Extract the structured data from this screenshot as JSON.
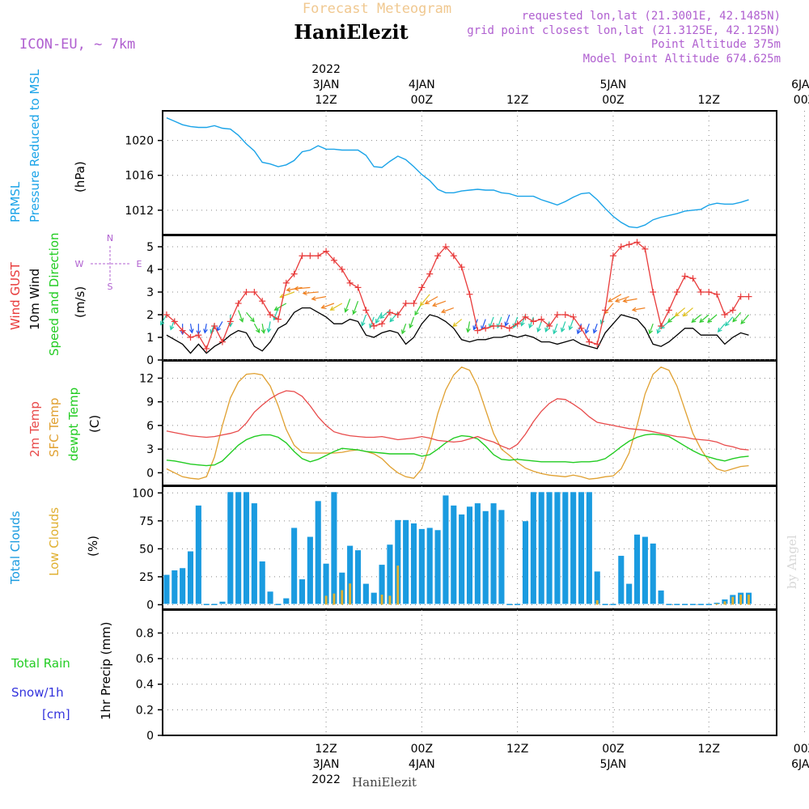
{
  "header": {
    "subtitle": "Forecast Meteogram",
    "station": "HaniElezit",
    "model": "ICON-EU, ~ 7km",
    "requested": "requested lon,lat (21.3001E, 42.1485N)",
    "grid_point": "grid point closest lon,lat (21.3125E, 42.125N)",
    "point_altitude": "Point Altitude 375m",
    "model_altitude": "Model Point Altitude 674.625m",
    "credit": "by Angel",
    "footer_station": "HaniElezit"
  },
  "time_axis": {
    "top_labels": [
      {
        "step": 21,
        "lines": [
          "2022",
          "3JAN",
          "12Z"
        ]
      },
      {
        "step": 33,
        "lines": [
          "4JAN",
          "00Z"
        ]
      },
      {
        "step": 45,
        "lines": [
          "12Z"
        ]
      },
      {
        "step": 57,
        "lines": [
          "5JAN",
          "00Z"
        ]
      },
      {
        "step": 69,
        "lines": [
          "12Z"
        ]
      },
      {
        "step": 81,
        "lines": [
          "6JAN",
          "00Z"
        ]
      }
    ],
    "bottom_labels": [
      {
        "step": 21,
        "lines": [
          "12Z",
          "3JAN",
          "2022"
        ]
      },
      {
        "step": 33,
        "lines": [
          "00Z",
          "4JAN"
        ]
      },
      {
        "step": 45,
        "lines": [
          "12Z"
        ]
      },
      {
        "step": 57,
        "lines": [
          "00Z",
          "5JAN"
        ]
      },
      {
        "step": 69,
        "lines": [
          "12Z"
        ]
      },
      {
        "step": 81,
        "lines": [
          "00Z",
          "6JAN"
        ]
      }
    ],
    "start_step": 1,
    "end_step": 77,
    "step_unit": "hour"
  },
  "colors": {
    "pressure": "#1aa3e8",
    "gust": "#e83a3a",
    "wind": "#000000",
    "temp2m": "#e84a4a",
    "sfctemp": "#e0a030",
    "dewpt": "#22cc22",
    "total_clouds": "#1a9be0",
    "low_clouds": "#e0b030",
    "rain": "#22cc22",
    "snow": "#3333dd",
    "header_purple": "#b060d0",
    "header_orange": "#f0c890"
  },
  "chart_data": [
    {
      "type": "line",
      "panel": "pressure",
      "title_lines": [
        "PRMSL",
        "Pressure Reduced to MSL"
      ],
      "ylabel": "(hPa)",
      "ylim": [
        1009.2,
        1023.4
      ],
      "yticks": [
        1012,
        1016,
        1020
      ],
      "x_start": 1,
      "values": [
        1022.6,
        1022.2,
        1021.8,
        1021.6,
        1021.5,
        1021.5,
        1021.7,
        1021.4,
        1021.3,
        1020.6,
        1019.6,
        1018.8,
        1017.5,
        1017.3,
        1017.0,
        1017.2,
        1017.7,
        1018.7,
        1018.9,
        1019.4,
        1019.0,
        1019.0,
        1018.9,
        1018.9,
        1018.9,
        1018.3,
        1017.0,
        1016.9,
        1017.6,
        1018.2,
        1017.8,
        1017.0,
        1016.1,
        1015.4,
        1014.4,
        1014.0,
        1014.0,
        1014.2,
        1014.3,
        1014.4,
        1014.3,
        1014.3,
        1014.0,
        1013.9,
        1013.6,
        1013.6,
        1013.6,
        1013.2,
        1012.9,
        1012.6,
        1013.0,
        1013.5,
        1013.9,
        1014.0,
        1013.2,
        1012.2,
        1011.3,
        1010.6,
        1010.1,
        1010.0,
        1010.3,
        1010.9,
        1011.2,
        1011.4,
        1011.6,
        1011.9,
        1012.0,
        1012.1,
        1012.6,
        1012.8,
        1012.7,
        1012.7,
        1012.9,
        1013.2
      ]
    },
    {
      "type": "line",
      "panel": "wind",
      "title_lines": [
        "Wind GUST",
        "10m Wind",
        "Speed and Direction"
      ],
      "ylabel": "(m/s)",
      "ylim": [
        0,
        5.5
      ],
      "yticks": [
        0,
        1,
        2,
        3,
        4,
        5
      ],
      "compass": {
        "n": "N",
        "s": "S",
        "w": "W",
        "e": "E"
      },
      "x_start": 1,
      "series": [
        {
          "name": "Wind GUST",
          "values": [
            2.0,
            1.7,
            1.3,
            1.0,
            1.1,
            0.5,
            1.5,
            0.8,
            1.7,
            2.5,
            3.0,
            3.0,
            2.6,
            2.0,
            1.8,
            3.4,
            3.8,
            4.6,
            4.6,
            4.6,
            4.8,
            4.4,
            4.0,
            3.4,
            3.2,
            2.2,
            1.5,
            1.6,
            2.1,
            2.0,
            2.5,
            2.5,
            3.2,
            3.8,
            4.6,
            5.0,
            4.6,
            4.1,
            2.9,
            1.3,
            1.4,
            1.5,
            1.5,
            1.4,
            1.6,
            1.9,
            1.7,
            1.8,
            1.5,
            2.0,
            2.0,
            1.9,
            1.4,
            0.8,
            0.7,
            2.2,
            4.6,
            5.0,
            5.1,
            5.2,
            4.9,
            3.0,
            1.5,
            2.2,
            3.0,
            3.7,
            3.6,
            3.0,
            3.0,
            2.9,
            2.0,
            2.2,
            2.8,
            2.8
          ]
        },
        {
          "name": "10m Wind",
          "values": [
            1.1,
            0.9,
            0.7,
            0.3,
            0.7,
            0.3,
            0.6,
            0.8,
            1.1,
            1.3,
            1.2,
            0.6,
            0.4,
            0.8,
            1.4,
            1.6,
            2.1,
            2.3,
            2.3,
            2.1,
            1.9,
            1.6,
            1.6,
            1.8,
            1.7,
            1.1,
            1.0,
            1.2,
            1.3,
            1.2,
            0.7,
            1.0,
            1.6,
            2.0,
            1.9,
            1.7,
            1.4,
            0.9,
            0.8,
            0.9,
            0.9,
            1.0,
            1.0,
            1.1,
            1.0,
            1.1,
            1.0,
            0.8,
            0.8,
            0.7,
            0.8,
            0.9,
            0.7,
            0.6,
            0.5,
            1.2,
            1.6,
            2.0,
            1.9,
            1.8,
            1.4,
            0.7,
            0.6,
            0.8,
            1.1,
            1.4,
            1.4,
            1.1,
            1.1,
            1.1,
            0.7,
            1.0,
            1.2,
            1.1
          ]
        }
      ],
      "arrow_dirs_deg": [
        210,
        200,
        180,
        170,
        180,
        190,
        200,
        210,
        180,
        160,
        140,
        150,
        170,
        190,
        200,
        240,
        250,
        260,
        265,
        265,
        260,
        250,
        240,
        200,
        200,
        200,
        200,
        210,
        230,
        220,
        200,
        200,
        210,
        220,
        240,
        250,
        250,
        230,
        190,
        200,
        200,
        200,
        200,
        200,
        200,
        200,
        200,
        200,
        200,
        200,
        200,
        200,
        200,
        200,
        200,
        200,
        220,
        240,
        250,
        260,
        260,
        200,
        200,
        230,
        230,
        230,
        230,
        230,
        230,
        230,
        220,
        220,
        220,
        220
      ]
    },
    {
      "type": "line",
      "panel": "temperature",
      "title_lines": [
        "2m Temp",
        "SFC Temp",
        "dewpt Temp"
      ],
      "ylabel": "(C)",
      "ylim": [
        -1.6,
        14.2
      ],
      "yticks": [
        0,
        3,
        6,
        9,
        12
      ],
      "x_start": 1,
      "series": [
        {
          "name": "2m Temp",
          "values": [
            5.3,
            5.1,
            4.9,
            4.7,
            4.6,
            4.5,
            4.6,
            4.8,
            5.0,
            5.3,
            6.3,
            7.7,
            8.6,
            9.4,
            10.0,
            10.4,
            10.3,
            9.7,
            8.5,
            7.1,
            6.0,
            5.2,
            4.9,
            4.7,
            4.6,
            4.5,
            4.5,
            4.6,
            4.4,
            4.2,
            4.3,
            4.4,
            4.6,
            4.4,
            4.1,
            4.0,
            3.9,
            4.0,
            4.3,
            4.6,
            4.2,
            3.9,
            3.4,
            3.0,
            3.6,
            4.9,
            6.5,
            7.8,
            8.8,
            9.4,
            9.3,
            8.7,
            8.0,
            7.1,
            6.4,
            6.2,
            6.0,
            5.8,
            5.6,
            5.5,
            5.4,
            5.2,
            5.0,
            4.8,
            4.6,
            4.5,
            4.3,
            4.2,
            4.1,
            3.9,
            3.5,
            3.3,
            3.0,
            2.9
          ]
        },
        {
          "name": "SFC Temp",
          "values": [
            0.5,
            0.0,
            -0.5,
            -0.7,
            -0.8,
            -0.5,
            2.0,
            6.0,
            9.5,
            11.5,
            12.5,
            12.6,
            12.4,
            11.0,
            8.5,
            5.5,
            3.5,
            2.6,
            2.5,
            2.5,
            2.5,
            2.5,
            2.6,
            2.8,
            2.9,
            2.7,
            2.4,
            1.8,
            0.8,
            0.0,
            -0.5,
            -0.7,
            0.5,
            3.5,
            7.5,
            10.5,
            12.4,
            13.4,
            13.0,
            11.0,
            8.0,
            5.0,
            3.0,
            2.2,
            1.3,
            0.6,
            0.2,
            -0.1,
            -0.3,
            -0.4,
            -0.5,
            -0.3,
            -0.5,
            -0.8,
            -0.7,
            -0.5,
            -0.4,
            0.5,
            2.5,
            6.0,
            10.0,
            12.5,
            13.4,
            13.0,
            11.0,
            8.0,
            5.0,
            3.0,
            1.5,
            0.5,
            0.2,
            0.5,
            0.8,
            0.9
          ]
        },
        {
          "name": "dewpt Temp",
          "values": [
            1.6,
            1.5,
            1.3,
            1.1,
            1.0,
            0.9,
            1.0,
            1.5,
            2.5,
            3.5,
            4.2,
            4.6,
            4.8,
            4.8,
            4.5,
            3.8,
            2.7,
            1.8,
            1.4,
            1.7,
            2.2,
            2.7,
            3.1,
            3.0,
            2.9,
            2.7,
            2.6,
            2.5,
            2.4,
            2.4,
            2.4,
            2.4,
            2.1,
            2.3,
            3.0,
            3.8,
            4.4,
            4.7,
            4.6,
            4.3,
            3.4,
            2.3,
            1.7,
            1.6,
            1.7,
            1.6,
            1.5,
            1.4,
            1.4,
            1.4,
            1.4,
            1.3,
            1.4,
            1.4,
            1.5,
            1.8,
            2.5,
            3.3,
            4.0,
            4.5,
            4.8,
            4.9,
            4.8,
            4.6,
            4.0,
            3.4,
            2.8,
            2.3,
            2.0,
            1.7,
            1.5,
            1.8,
            2.0,
            2.1
          ]
        }
      ]
    },
    {
      "type": "bar",
      "panel": "clouds",
      "title_lines": [
        "Total Clouds",
        "Low Clouds"
      ],
      "ylabel": "(%)",
      "ylim": [
        -4,
        106
      ],
      "yticks": [
        0,
        25,
        50,
        75,
        100
      ],
      "x_start": 1,
      "series": [
        {
          "name": "Total Clouds",
          "values": [
            26,
            30,
            32,
            47,
            88,
            0,
            0,
            2,
            100,
            100,
            100,
            90,
            38,
            11,
            0,
            5,
            68,
            22,
            60,
            92,
            36,
            100,
            28,
            52,
            48,
            18,
            10,
            35,
            53,
            75,
            75,
            72,
            67,
            68,
            66,
            97,
            88,
            80,
            87,
            90,
            83,
            90,
            84,
            0,
            0,
            74,
            100,
            100,
            100,
            100,
            100,
            100,
            100,
            100,
            29,
            0,
            0,
            43,
            18,
            62,
            60,
            54,
            12,
            0,
            0,
            0,
            0,
            0,
            0,
            1,
            4,
            8,
            10,
            10
          ]
        },
        {
          "name": "Low Clouds",
          "values": [
            0,
            0,
            0,
            0,
            0,
            0,
            0,
            0,
            0,
            0,
            0,
            0,
            0,
            0,
            0,
            0,
            0,
            0,
            0,
            0,
            8,
            10,
            13,
            19,
            0,
            0,
            0,
            9,
            8,
            35,
            0,
            0,
            0,
            0,
            0,
            0,
            0,
            0,
            0,
            0,
            0,
            0,
            0,
            0,
            0,
            0,
            0,
            0,
            0,
            0,
            0,
            0,
            0,
            0,
            4,
            0,
            0,
            0,
            0,
            0,
            0,
            0,
            0,
            0,
            0,
            0,
            0,
            0,
            0,
            1,
            3,
            7,
            9,
            9
          ]
        }
      ]
    },
    {
      "type": "bar",
      "panel": "precip",
      "title_lines": [
        "Total Rain",
        "Snow/1h",
        "[cm]"
      ],
      "ylabel": "1hr Precip (mm)",
      "ylim": [
        0,
        0.98
      ],
      "yticks": [
        0,
        0.2,
        0.4,
        0.6,
        0.8
      ],
      "ytick_labels": [
        "0",
        "0.2",
        "0.4",
        "0.6",
        "0.8"
      ],
      "x_start": 1,
      "series": [
        {
          "name": "Total Rain",
          "values": []
        },
        {
          "name": "Snow/1h",
          "values": []
        }
      ]
    }
  ]
}
